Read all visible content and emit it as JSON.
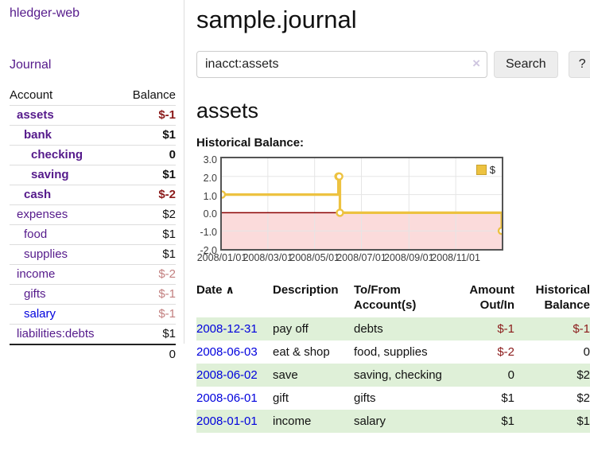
{
  "app": {
    "brand": "hledger-web"
  },
  "sidebar": {
    "journal_link": "Journal",
    "accounts": {
      "col_account": "Account",
      "col_balance": "Balance",
      "rows": [
        {
          "name": "assets",
          "balance": "$-1",
          "level": 1,
          "bold": true
        },
        {
          "name": "bank",
          "balance": "$1",
          "level": 2,
          "bold": true
        },
        {
          "name": "checking",
          "balance": "0",
          "level": 3,
          "bold": true
        },
        {
          "name": "saving",
          "balance": "$1",
          "level": 3,
          "bold": true
        },
        {
          "name": "cash",
          "balance": "$-2",
          "level": 2,
          "bold": true
        },
        {
          "name": "expenses",
          "balance": "$2",
          "level": 1
        },
        {
          "name": "food",
          "balance": "$1",
          "level": 2
        },
        {
          "name": "supplies",
          "balance": "$1",
          "level": 2
        },
        {
          "name": "income",
          "balance": "$-2",
          "level": 1,
          "muted": true
        },
        {
          "name": "gifts",
          "balance": "$-1",
          "level": 2,
          "muted": true
        },
        {
          "name": "salary",
          "balance": "$-1",
          "level": 2,
          "muted": true,
          "unvisited": true
        },
        {
          "name": "liabilities:debts",
          "balance": "$1",
          "level": 1
        }
      ],
      "total": "0"
    }
  },
  "header": {
    "title": "sample.journal"
  },
  "search": {
    "value": "inacct:assets",
    "clear_icon": "×",
    "search_label": "Search",
    "help_label": "?"
  },
  "account_page": {
    "heading": "assets",
    "chart_title": "Historical Balance:"
  },
  "chart_data": {
    "type": "line",
    "step": true,
    "title": "Historical Balance",
    "series": [
      {
        "name": "$",
        "color": "#edc240",
        "points": [
          [
            "2008-01-01",
            1
          ],
          [
            "2008-06-01",
            2
          ],
          [
            "2008-06-02",
            2
          ],
          [
            "2008-06-03",
            0
          ],
          [
            "2008-12-31",
            -1
          ]
        ]
      }
    ],
    "x_range": [
      "2008-01-01",
      "2008-12-31"
    ],
    "ylim": [
      -2,
      3
    ],
    "x_ticks": [
      "2008/01/01",
      "2008/03/01",
      "2008/05/01",
      "2008/07/01",
      "2008/09/01",
      "2008/11/01"
    ],
    "y_ticks": [
      "3.0",
      "2.0",
      "1.0",
      "0.0",
      "-1.0",
      "-2.0"
    ],
    "grid": true,
    "grid_color": "#e5e5e5",
    "legend_position": "top-right",
    "negative_region_color": "#fbdbdb",
    "zero_line_color": "#8b0000",
    "border_color": "#545454"
  },
  "register": {
    "headers": {
      "date": "Date",
      "description": "Description",
      "accounts": "To/From Account(s)",
      "amount": "Amount Out/In",
      "balance": "Historical Balance"
    },
    "sort_icon": "∧",
    "rows": [
      {
        "date": "2008-12-31",
        "description": "pay off",
        "accounts": "debts",
        "amount": "$-1",
        "balance": "$-1"
      },
      {
        "date": "2008-06-03",
        "description": "eat & shop",
        "accounts": "food, supplies",
        "amount": "$-2",
        "balance": "0"
      },
      {
        "date": "2008-06-02",
        "description": "save",
        "accounts": "saving, checking",
        "amount": "0",
        "balance": "$2"
      },
      {
        "date": "2008-06-01",
        "description": "gift",
        "accounts": "gifts",
        "amount": "$1",
        "balance": "$2"
      },
      {
        "date": "2008-01-01",
        "description": "income",
        "accounts": "salary",
        "amount": "$1",
        "balance": "$1"
      }
    ]
  }
}
